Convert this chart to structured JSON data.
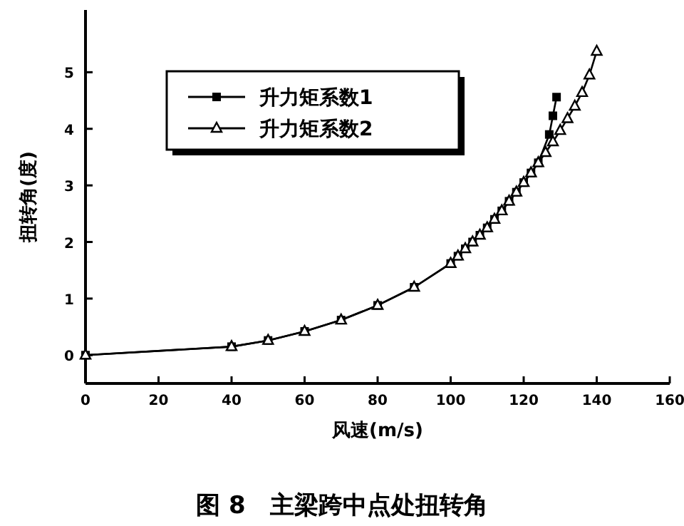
{
  "chart_data": {
    "type": "line",
    "title": "图 8　主梁跨中点处扭转角",
    "xlabel": "风速(m/s)",
    "ylabel": "扭转角(度)",
    "xlim": [
      0,
      160
    ],
    "xticks": [
      0,
      20,
      40,
      60,
      80,
      100,
      120,
      140,
      160
    ],
    "ylim": [
      -0.5,
      6.1
    ],
    "yticks": [
      0,
      1,
      2,
      3,
      4,
      5
    ],
    "legend": "top left",
    "grid": false,
    "series": [
      {
        "name": "升力矩系数1",
        "color": "#000000",
        "marker": "square",
        "line_style": "solid",
        "x": [
          0,
          40,
          50,
          60,
          70,
          80,
          90,
          100,
          102,
          104,
          106,
          108,
          110,
          112,
          114,
          116,
          118,
          120,
          122,
          124,
          127,
          128,
          129
        ],
        "values": [
          0,
          0.15,
          0.26,
          0.42,
          0.62,
          0.88,
          1.2,
          1.62,
          1.75,
          1.88,
          2.0,
          2.12,
          2.25,
          2.4,
          2.55,
          2.72,
          2.88,
          3.05,
          3.22,
          3.4,
          3.9,
          4.23,
          4.56
        ]
      },
      {
        "name": "升力矩系数2",
        "color": "#000000",
        "marker": "triangle",
        "line_style": "solid",
        "x": [
          0,
          40,
          50,
          60,
          70,
          80,
          90,
          100,
          102,
          104,
          106,
          108,
          110,
          112,
          114,
          116,
          118,
          120,
          122,
          124,
          126,
          128,
          130,
          132,
          134,
          136,
          138,
          140
        ],
        "values": [
          0,
          0.15,
          0.26,
          0.42,
          0.62,
          0.88,
          1.2,
          1.62,
          1.75,
          1.88,
          2.0,
          2.12,
          2.25,
          2.4,
          2.55,
          2.72,
          2.88,
          3.05,
          3.22,
          3.4,
          3.58,
          3.77,
          3.97,
          4.18,
          4.4,
          4.64,
          4.95,
          5.37
        ]
      }
    ]
  }
}
